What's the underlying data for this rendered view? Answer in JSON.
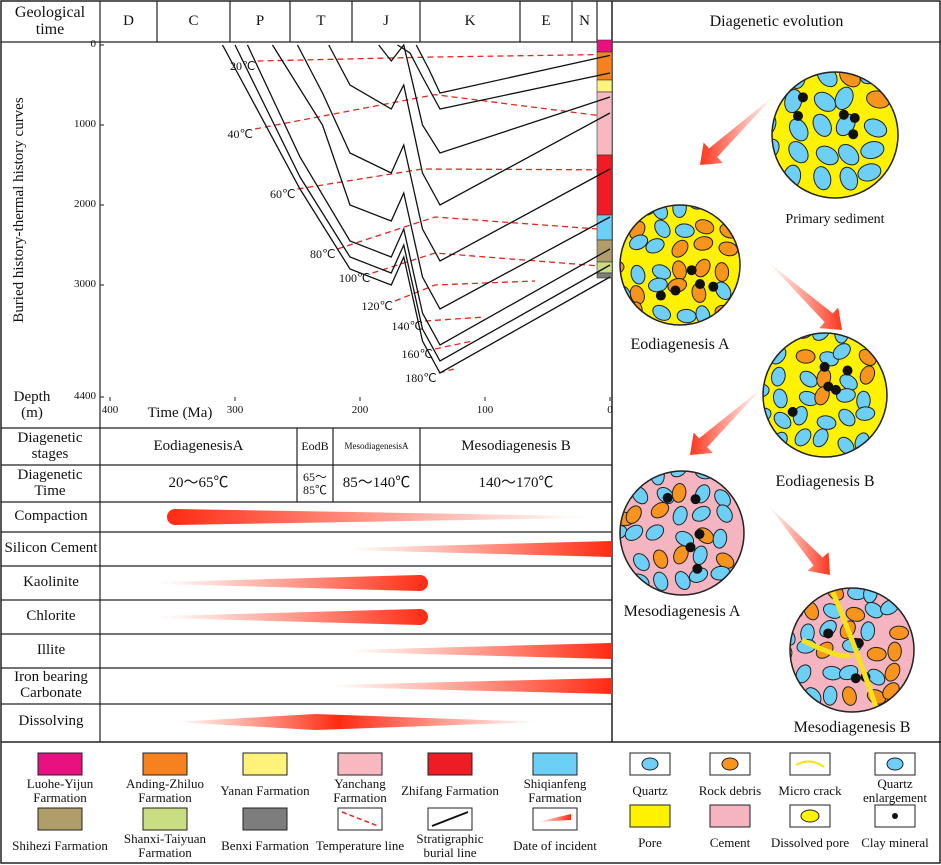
{
  "header": {
    "geological_time": "Geological time",
    "periods": [
      "D",
      "C",
      "P",
      "T",
      "J",
      "K",
      "E",
      "N"
    ],
    "diagenetic_evolution": "Diagenetic evolution"
  },
  "burial_chart": {
    "y_label": "Buried history-thermal history curves",
    "x_label": "Time (Ma)",
    "depth_label": "Depth (m)",
    "xlim": [
      400,
      0
    ],
    "ylim": [
      0,
      4400
    ],
    "xticks": [
      400,
      300,
      200,
      100,
      0
    ],
    "yticks": [
      0,
      1000,
      2000,
      3000,
      4400
    ],
    "stratigraphic_curves": [
      {
        "t": [
          310,
          248,
          208,
          175,
          165,
          150,
          136,
          0
        ],
        "d": [
          0,
          1800,
          2800,
          3000,
          2650,
          3700,
          4100,
          2900
        ]
      },
      {
        "t": [
          300,
          248,
          208,
          175,
          165,
          150,
          136,
          0
        ],
        "d": [
          0,
          1650,
          2650,
          2850,
          2500,
          3550,
          3950,
          2750
        ]
      },
      {
        "t": [
          290,
          248,
          208,
          175,
          165,
          150,
          136,
          0
        ],
        "d": [
          0,
          1400,
          2450,
          2650,
          2300,
          3350,
          3750,
          2550
        ]
      },
      {
        "t": [
          270,
          230,
          208,
          175,
          165,
          150,
          136,
          0
        ],
        "d": [
          0,
          1000,
          2000,
          2200,
          1850,
          2900,
          3300,
          2150
        ]
      },
      {
        "t": [
          250,
          230,
          208,
          175,
          165,
          150,
          136,
          0
        ],
        "d": [
          0,
          600,
          1350,
          1600,
          1250,
          2300,
          2700,
          1550
        ]
      },
      {
        "t": [
          225,
          208,
          175,
          165,
          150,
          136,
          0
        ],
        "d": [
          0,
          500,
          800,
          500,
          1600,
          2000,
          850
        ]
      },
      {
        "t": [
          185,
          175,
          165,
          150,
          136,
          0
        ],
        "d": [
          0,
          200,
          0,
          1000,
          1350,
          650
        ]
      },
      {
        "t": [
          170,
          160,
          150,
          136,
          0
        ],
        "d": [
          0,
          100,
          400,
          800,
          350
        ]
      },
      {
        "t": [
          155,
          145,
          136,
          0
        ],
        "d": [
          0,
          300,
          600,
          130
        ]
      }
    ],
    "temperature_lines": [
      {
        "label": "20℃",
        "t": [
          282,
          140,
          10
        ],
        "d": [
          200,
          150,
          120
        ]
      },
      {
        "label": "40℃",
        "t": [
          284,
          140,
          10
        ],
        "d": [
          1050,
          620,
          880
        ]
      },
      {
        "label": "60℃",
        "t": [
          250,
          150,
          10
        ],
        "d": [
          1800,
          1550,
          1560
        ]
      },
      {
        "label": "80℃",
        "t": [
          218,
          140,
          10
        ],
        "d": [
          2550,
          2150,
          2300
        ]
      },
      {
        "label": "100℃",
        "t": [
          190,
          140,
          10
        ],
        "d": [
          2850,
          2600,
          2760
        ]
      },
      {
        "label": "120℃",
        "t": [
          172,
          140,
          60
        ],
        "d": [
          3200,
          3000,
          2950
        ]
      },
      {
        "label": "140℃",
        "t": [
          148,
          100
        ],
        "d": [
          3450,
          3400
        ]
      },
      {
        "label": "160℃",
        "t": [
          140,
          110
        ],
        "d": [
          3800,
          3700
        ]
      },
      {
        "label": "180℃",
        "t": [
          137,
          125
        ],
        "d": [
          4100,
          4050
        ]
      }
    ]
  },
  "stages": {
    "label": "Diagenetic stages",
    "items": [
      "EodiagenesisA",
      "EodB",
      "MesodiagenesisA",
      "Mesodiagenesis B"
    ]
  },
  "diagenetic_time": {
    "label": "Diagenetic Time",
    "items": [
      "20～65℃",
      "65～85℃",
      "85～140℃",
      "140～170℃"
    ]
  },
  "processes": [
    "Compaction",
    "Silicon Cement",
    "Kaolinite",
    "Chlorite",
    "Illite",
    "Iron bearing Carbonate",
    "Dissolving"
  ],
  "evolution": [
    "Primary sediment",
    "Eodiagenesis A",
    "Eodiagenesis B",
    "Mesodiagenesis A",
    "Mesodiagenesis B"
  ],
  "legend_formations": [
    {
      "label": "Luohe-Yijun Farmation",
      "color": "#e8117f"
    },
    {
      "label": "Anding-Zhiluo Farmation",
      "color": "#f6821f"
    },
    {
      "label": "Yanan Farmation",
      "color": "#fff27a"
    },
    {
      "label": "Yanchang Farmation",
      "color": "#f7b8c0"
    },
    {
      "label": "Zhifang Farmation",
      "color": "#ee1c24"
    },
    {
      "label": "Shiqianfeng Farmation",
      "color": "#6ccff6"
    },
    {
      "label": "Shihezi Farmation",
      "color": "#b09e6a"
    },
    {
      "label": "Shanxi-Taiyuan Farmation",
      "color": "#c9dd82"
    },
    {
      "label": "Benxi Farmation",
      "color": "#7d7d7d"
    },
    {
      "label": "Temperature line"
    },
    {
      "label": "Stratigraphic burial line"
    },
    {
      "label": "Date of incident"
    }
  ],
  "legend_components": [
    "Quartz",
    "Rock debris",
    "Micro crack",
    "Quartz enlargement",
    "Pore",
    "Cement",
    "Dissolved pore",
    "Clay mineral"
  ]
}
